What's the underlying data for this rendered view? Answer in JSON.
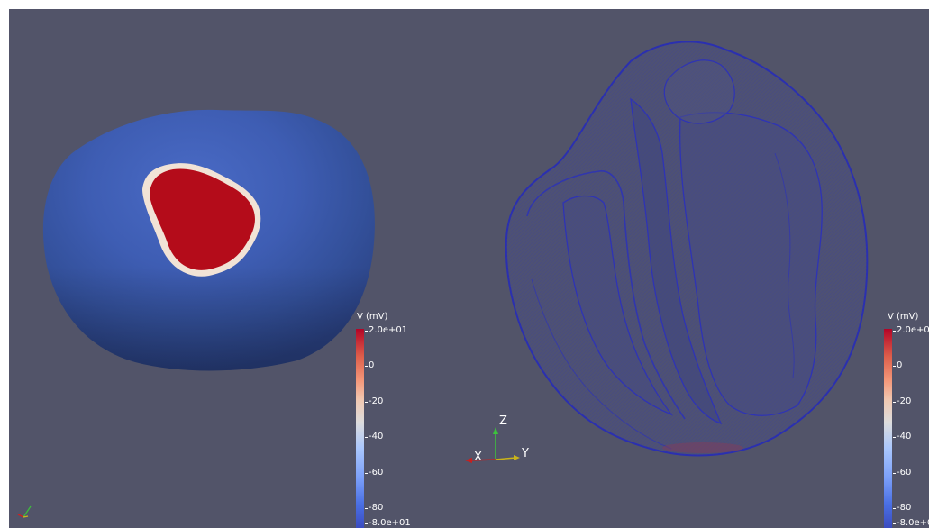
{
  "colorbar_left": {
    "title": "V (mV)",
    "ticks": [
      "2.0e+01",
      "0",
      "-20",
      "-40",
      "-60",
      "-80",
      "-8.0e+01"
    ]
  },
  "colorbar_right": {
    "title": "V (mV)",
    "ticks": [
      "2.0e+01",
      "0",
      "-20",
      "-40",
      "-60",
      "-80",
      "-8.0e+01"
    ]
  },
  "axes": {
    "x": "X",
    "y": "Y",
    "z": "Z"
  },
  "colors": {
    "background": "#525469",
    "surface": "#3c59a6",
    "activation": "#b40c1a",
    "mesh": "#2b2fa8"
  }
}
